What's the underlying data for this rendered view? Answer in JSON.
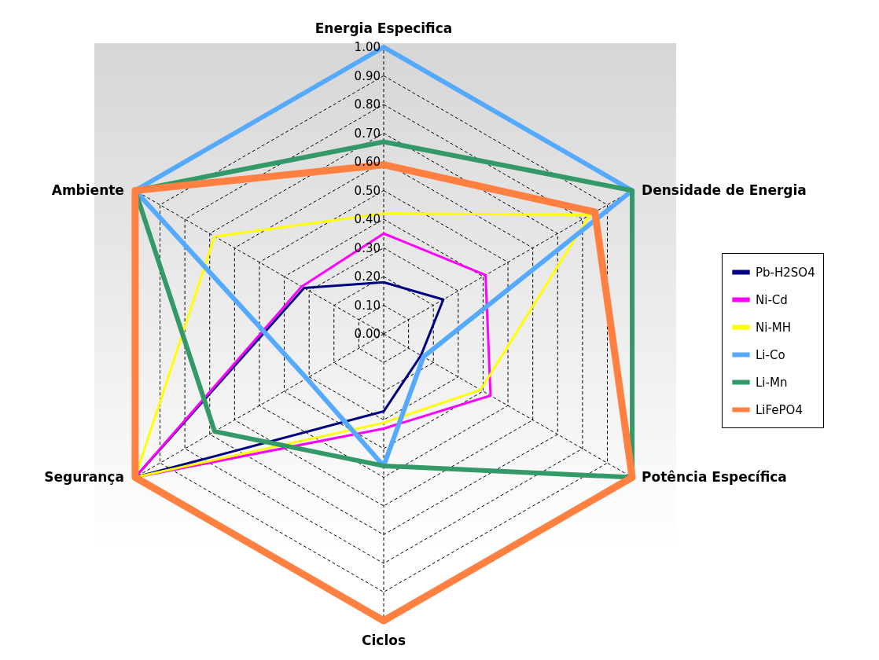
{
  "chart_data": {
    "type": "radar",
    "categories": [
      "Energia Especifica",
      "Densidade de Energia",
      "Potência Específica",
      "Ciclos",
      "Segurança",
      "Ambiente"
    ],
    "series": [
      {
        "name": "Pb-H2SO4",
        "color": "#000080",
        "values": [
          0.18,
          0.24,
          0.15,
          0.27,
          1.0,
          0.32
        ]
      },
      {
        "name": "Ni-Cd",
        "color": "#ff00ff",
        "values": [
          0.35,
          0.41,
          0.43,
          0.33,
          1.0,
          0.33
        ]
      },
      {
        "name": "Ni-MH",
        "color": "#ffff00",
        "values": [
          0.42,
          0.83,
          0.39,
          0.31,
          1.0,
          0.68
        ]
      },
      {
        "name": "Li-Co",
        "color": "#55aaff",
        "values": [
          1.0,
          1.0,
          0.16,
          0.46,
          0.31,
          1.0
        ]
      },
      {
        "name": "Li-Mn",
        "color": "#339966",
        "values": [
          0.67,
          1.0,
          1.0,
          0.46,
          0.68,
          1.0
        ]
      },
      {
        "name": "LiFePO4",
        "color": "#ff8040",
        "values": [
          0.59,
          0.85,
          1.0,
          1.0,
          1.0,
          1.0
        ]
      }
    ],
    "ylim": [
      0,
      1
    ],
    "yticks": [
      {
        "value": 0,
        "label": "0.00"
      },
      {
        "value": 0.1,
        "label": "0.10"
      },
      {
        "value": 0.2,
        "label": "0.20"
      },
      {
        "value": 0.3,
        "label": "0.30"
      },
      {
        "value": 0.4,
        "label": "0.40"
      },
      {
        "value": 0.5,
        "label": "0.50"
      },
      {
        "value": 0.6,
        "label": "0.60"
      },
      {
        "value": 0.7,
        "label": "0.70"
      },
      {
        "value": 0.8,
        "label": "0.80"
      },
      {
        "value": 0.9,
        "label": "0.90"
      },
      {
        "value": 1,
        "label": "1.00"
      }
    ],
    "grid": true,
    "legend": "right",
    "marker": "none"
  }
}
